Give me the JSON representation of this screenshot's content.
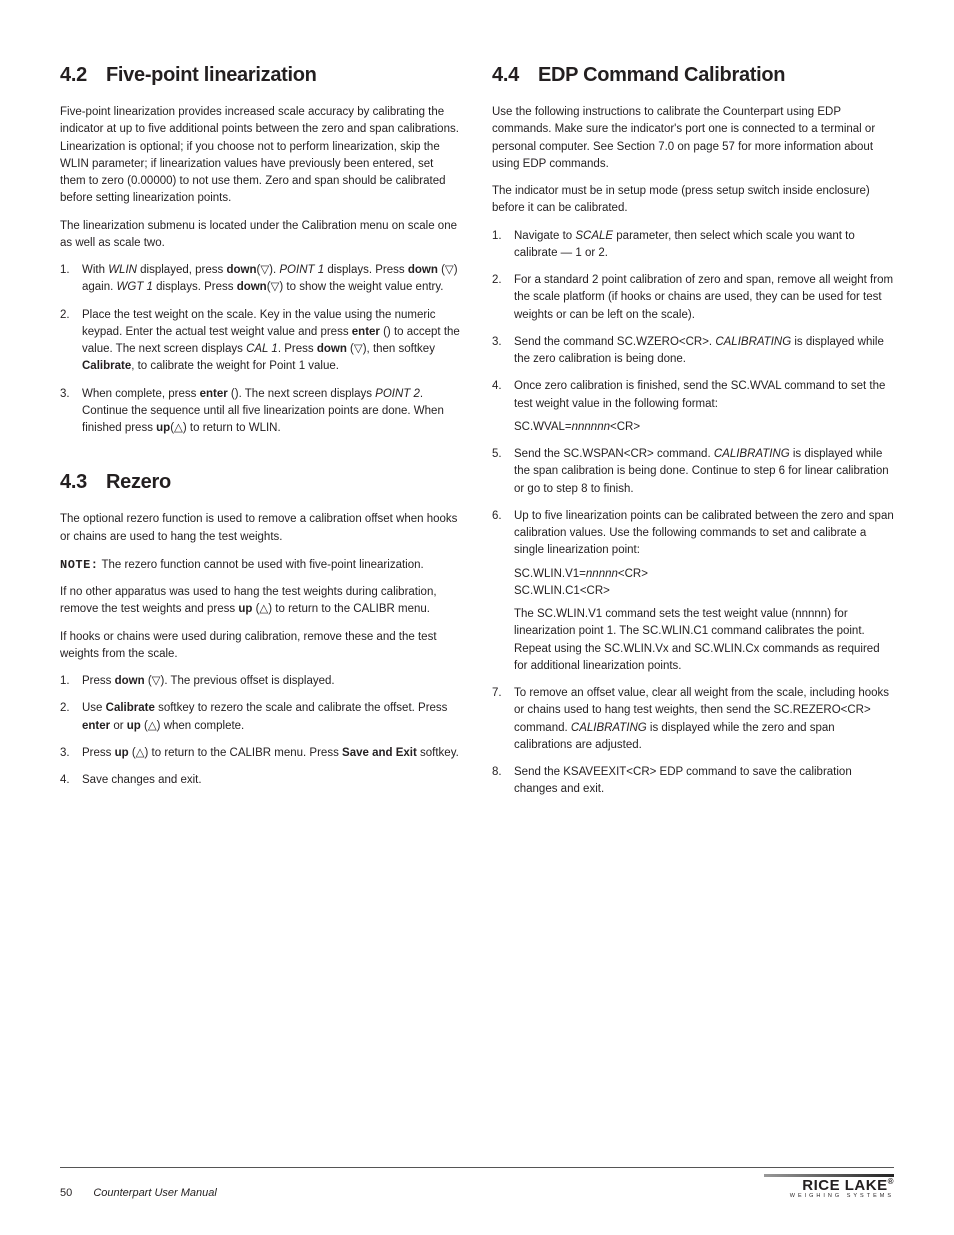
{
  "left": {
    "sec42": {
      "num": "4.2",
      "title": "Five-point linearization",
      "intro": "Five-point linearization provides increased scale accuracy by calibrating the indicator at up to five additional points between the zero and span calibrations. Linearization is optional; if you choose not to perform linearization, skip the WLIN parameter; if linearization values have previously been entered, set them to zero (0.00000) to not use them. Zero and span should be calibrated before setting linearization points.",
      "text2": "The linearization submenu is located under the Calibration menu on scale one as well as scale two.",
      "step1a": "With ",
      "step1b": "WLIN",
      "step1c": " displayed, press ",
      "step1d": "down",
      "step1e": "(▽). ",
      "step1f": "POINT 1",
      "step1g": " displays. Press ",
      "step1h": "down",
      "step1i": " (▽) again. ",
      "step1j": "WGT 1",
      "step1k": " displays. Press ",
      "step1l": "down",
      "step1m": "(▽) to show the weight value entry.",
      "step2a": "Place the test weight on the scale. Key in the value using the numeric keypad. Enter the actual test weight value and press ",
      "step2b": "enter",
      "step2c": " () to accept the value. The next screen displays ",
      "step2d": "CAL 1",
      "step2e": ". Press ",
      "step2f": "down",
      "step2g": " (▽), then softkey ",
      "step2h": "Calibrate",
      "step2i": ", to calibrate the weight for Point 1 value.",
      "step3a": "When complete, press ",
      "step3b": "enter",
      "step3c": " (). The next screen displays ",
      "step3d": "POINT 2",
      "step3e": ". Continue the sequence until all five linearization points are done. When finished press ",
      "step3f": "up",
      "step3g": "(△) to return to WLIN."
    },
    "sec43": {
      "num": "4.3",
      "title": "Rezero",
      "p1": "The optional rezero function is used to remove a calibration offset when hooks or chains are used to hang the test weights.",
      "note_label": "NOTE:",
      "note_body": "The rezero function cannot be used with five-point linearization.",
      "p2a": "If no other apparatus was used to hang the test weights during calibration, remove the test weights and press ",
      "p2b": "up",
      "p2c": " (△) to return to the CALIBR menu.",
      "p3": "If hooks or chains were used during calibration, remove these and the test weights from the scale.",
      "s1a": "Press ",
      "s1b": "down",
      "s1c": " (▽). The previous offset is displayed.",
      "s2a": "Use ",
      "s2b": "Calibrate",
      "s2c": " softkey to rezero the scale and calibrate the offset. Press ",
      "s2d": "enter",
      "s2e": " or ",
      "s2f": "up",
      "s2g": " (△) when complete.",
      "s3a": "Press ",
      "s3b": "up",
      "s3c": " (△) to return to the CALIBR menu. Press ",
      "s3d": "Save and Exit",
      "s3e": " softkey.",
      "s4": "Save changes and exit."
    }
  },
  "right": {
    "sec44": {
      "num": "4.4",
      "title": "EDP Command Calibration",
      "intro": "Use the following instructions to calibrate the Counterpart using EDP commands. Make sure the indicator's port one is connected to a terminal or personal computer. See Section 7.0 on page 57 for more information about using EDP commands.",
      "note": "The indicator must be in setup mode (press setup switch inside enclosure) before it can be calibrated.",
      "step1a": "Navigate to ",
      "step1b": "SCALE",
      "step1c": " parameter, then select which scale you want to calibrate — 1 or 2.",
      "step2": "For a standard 2 point calibration of zero and span, remove all weight from the scale platform (if hooks or chains are used, they can be used for test weights or can be left on the scale).",
      "step3a": "Send the command SC.WZERO<CR>. ",
      "step3b": "CALIBRATING",
      "step3c": " is displayed while the zero calibration is being done.",
      "step4a": "Once zero calibration is finished, send the SC.WVAL command to set the test weight value in the following format:",
      "step4b": "SC.WVAL=",
      "step4c": "nnnnnn",
      "step4d": "<CR>",
      "step5a": "Send the SC.WSPAN<CR> command. ",
      "step5b": "CALIBRATING",
      "step5c": " is displayed while the span calibration is being done. Continue to step 6 for linear calibration or go to step 8 to finish.",
      "step6a": "Up to five linearization points can be calibrated between the zero and span calibration values. Use the following commands to set and calibrate a single linearization point:",
      "step6b": "SC.WLIN.V1=",
      "step6c": "nnnnn",
      "step6d": "<CR>",
      "step6e": "SC.WLIN.C1<CR>",
      "step6f": "The SC.WLIN.V1 command sets the test weight value (nnnnn) for linearization point 1. The SC.WLIN.C1 command calibrates the point. Repeat using the SC.WLIN.Vx and SC.WLIN.Cx commands as required for additional linearization points.",
      "step7a": "To remove an offset value, clear all weight from the scale, including hooks or chains used to hang test weights, then send the SC.REZERO<CR> command. ",
      "step7b": "CALIBRATING",
      "step7c": " is displayed while the zero and span calibrations are adjusted.",
      "step8": "Send the KSAVEEXIT<CR> EDP command to save the calibration changes and exit."
    }
  },
  "footer": {
    "page": "50",
    "title": "Counterpart User Manual",
    "logo_main": "RICE LAKE",
    "logo_sub": "WEIGHING SYSTEMS"
  }
}
